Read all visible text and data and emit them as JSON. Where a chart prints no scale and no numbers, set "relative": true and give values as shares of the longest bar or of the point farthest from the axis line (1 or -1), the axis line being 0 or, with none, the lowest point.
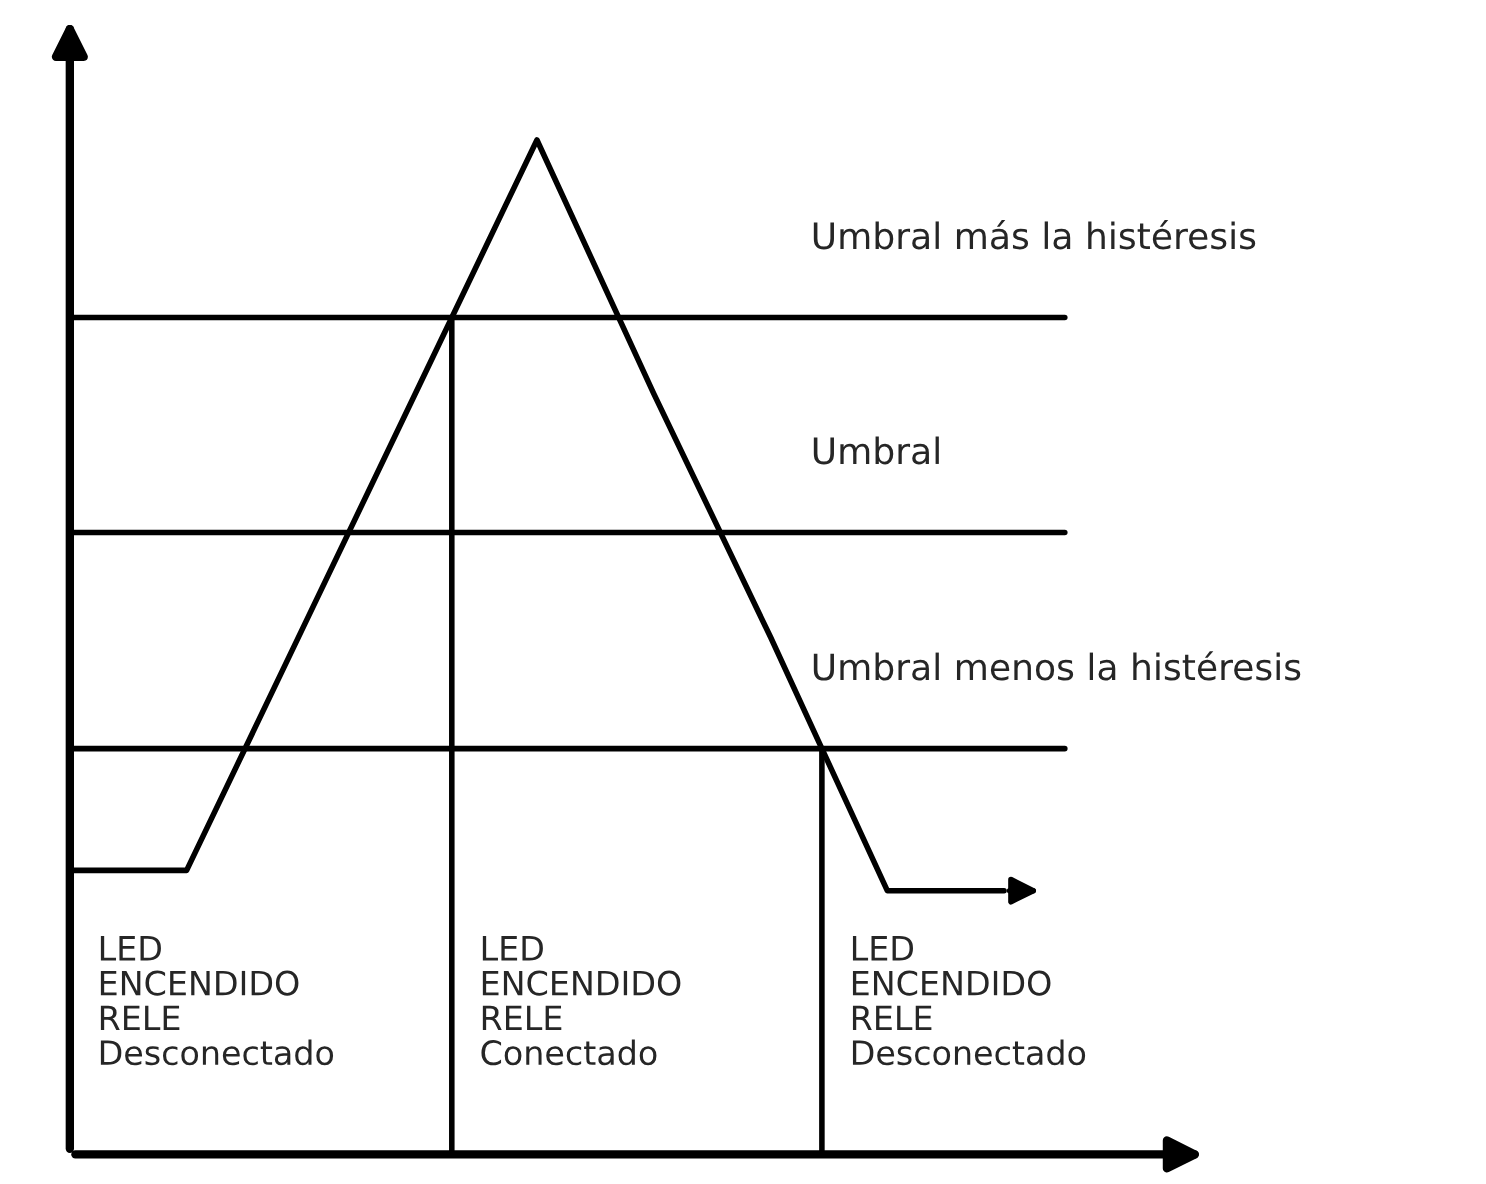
{
  "chart_data": {
    "type": "line",
    "relative": true,
    "marker": "none",
    "line_style": "solid",
    "categories": [
      null,
      null,
      null,
      null,
      null,
      null,
      null,
      null,
      null
    ],
    "series": [
      {
        "color": "#000000",
        "values": [
          0.28,
          0.28,
          0.52,
          0.76,
          1,
          0.75,
          0.51,
          0.26,
          0.26
        ]
      }
    ],
    "ref_lines": [
      {
        "axis": "y",
        "value": 0.825,
        "label": "Umbral más la histéresis",
        "color": "#000000"
      },
      {
        "axis": "y",
        "value": 0.613,
        "label": "Umbral",
        "color": "#000000"
      },
      {
        "axis": "y",
        "value": 0.4,
        "label": "Umbral menos la histéresis",
        "color": "#000000"
      }
    ],
    "annotations": [
      "LED\nENCENDIDO\nRELE\nDesconectado",
      "LED\nENCENDIDO\nRELE\nConectado",
      "LED\nENCENDIDO\nRELE\nDesconectado"
    ]
  }
}
